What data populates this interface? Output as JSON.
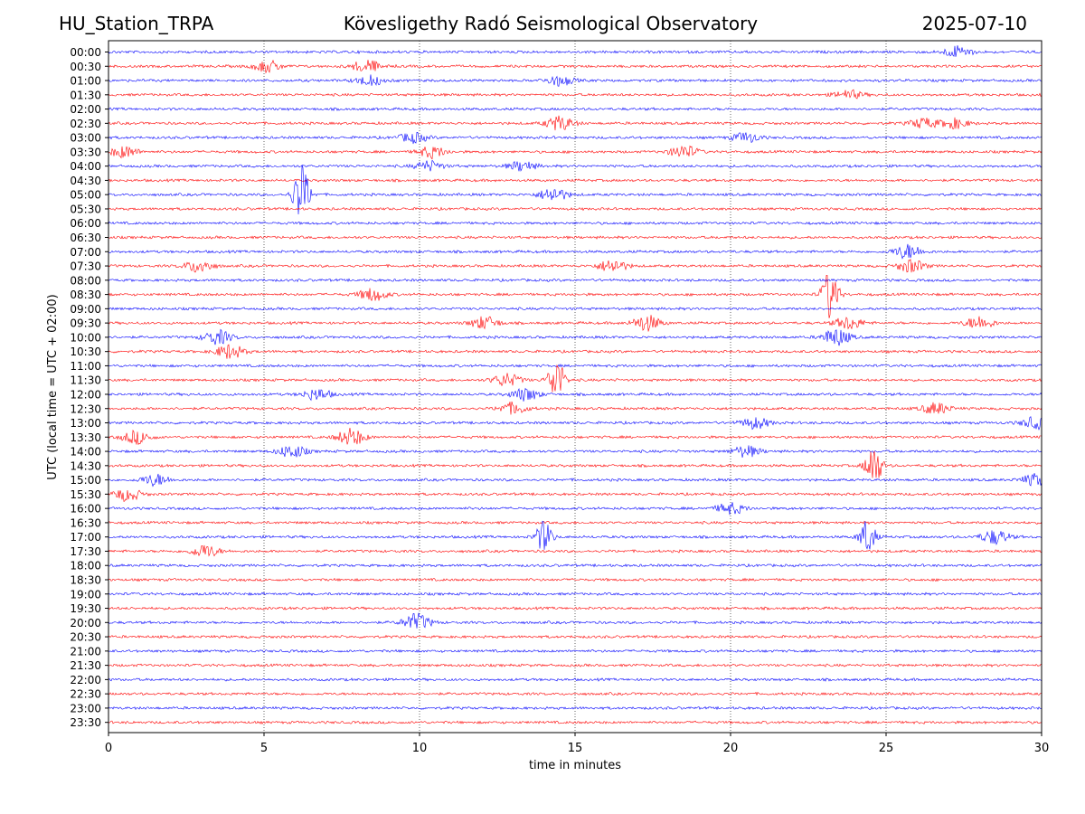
{
  "header": {
    "station": "HU_Station_TRPA",
    "observatory": "Kövesligethy Radó Seismological Observatory",
    "date": "2025-07-10"
  },
  "chart_data": {
    "type": "line",
    "title": "Kövesligethy Radó Seismological Observatory",
    "xlabel": "time in minutes",
    "ylabel": "UTC (local time = UTC + 02:00)",
    "xlim": [
      0,
      30
    ],
    "xticks": [
      0,
      5,
      10,
      15,
      20,
      25,
      30
    ],
    "grid": "vertical dotted lines at 5-minute intervals",
    "trace_colors": [
      "#0000ff",
      "#ff0000"
    ],
    "rows": [
      "00:00",
      "00:30",
      "01:00",
      "01:30",
      "02:00",
      "02:30",
      "03:00",
      "03:30",
      "04:00",
      "04:30",
      "05:00",
      "05:30",
      "06:00",
      "06:30",
      "07:00",
      "07:30",
      "08:00",
      "08:30",
      "09:00",
      "09:30",
      "10:00",
      "10:30",
      "11:00",
      "11:30",
      "12:00",
      "12:30",
      "13:00",
      "13:30",
      "14:00",
      "14:30",
      "15:00",
      "15:30",
      "16:00",
      "16:30",
      "17:00",
      "17:30",
      "18:00",
      "18:30",
      "19:00",
      "19:30",
      "20:00",
      "20:30",
      "21:00",
      "21:30",
      "22:00",
      "22:30",
      "23:00",
      "23:30"
    ],
    "events": [
      {
        "row": "00:00",
        "minute": 27.3,
        "amplitude": 0.4
      },
      {
        "row": "00:30",
        "minute": 5.1,
        "amplitude": 0.4
      },
      {
        "row": "00:30",
        "minute": 8.3,
        "amplitude": 0.45
      },
      {
        "row": "01:00",
        "minute": 8.4,
        "amplitude": 0.35
      },
      {
        "row": "01:00",
        "minute": 14.5,
        "amplitude": 0.35
      },
      {
        "row": "01:30",
        "minute": 23.8,
        "amplitude": 0.3
      },
      {
        "row": "02:30",
        "minute": 14.5,
        "amplitude": 0.5
      },
      {
        "row": "02:30",
        "minute": 26.2,
        "amplitude": 0.35
      },
      {
        "row": "02:30",
        "minute": 27.2,
        "amplitude": 0.35
      },
      {
        "row": "03:00",
        "minute": 9.8,
        "amplitude": 0.35
      },
      {
        "row": "03:00",
        "minute": 20.5,
        "amplitude": 0.35
      },
      {
        "row": "03:30",
        "minute": 0.5,
        "amplitude": 0.4
      },
      {
        "row": "03:30",
        "minute": 10.4,
        "amplitude": 0.4
      },
      {
        "row": "03:30",
        "minute": 18.5,
        "amplitude": 0.45
      },
      {
        "row": "04:00",
        "minute": 10.3,
        "amplitude": 0.35
      },
      {
        "row": "04:00",
        "minute": 13.3,
        "amplitude": 0.35
      },
      {
        "row": "05:00",
        "minute": 6.2,
        "amplitude": 2.1
      },
      {
        "row": "05:00",
        "minute": 14.3,
        "amplitude": 0.5
      },
      {
        "row": "07:00",
        "minute": 25.7,
        "amplitude": 0.5
      },
      {
        "row": "07:30",
        "minute": 2.9,
        "amplitude": 0.45
      },
      {
        "row": "07:30",
        "minute": 16.2,
        "amplitude": 0.45
      },
      {
        "row": "07:30",
        "minute": 25.8,
        "amplitude": 0.45
      },
      {
        "row": "08:30",
        "minute": 8.5,
        "amplitude": 0.45
      },
      {
        "row": "08:30",
        "minute": 23.2,
        "amplitude": 1.8
      },
      {
        "row": "09:30",
        "minute": 12.1,
        "amplitude": 0.45
      },
      {
        "row": "09:30",
        "minute": 17.3,
        "amplitude": 0.55
      },
      {
        "row": "09:30",
        "minute": 23.8,
        "amplitude": 0.45
      },
      {
        "row": "09:30",
        "minute": 28.0,
        "amplitude": 0.45
      },
      {
        "row": "10:00",
        "minute": 3.5,
        "amplitude": 0.5
      },
      {
        "row": "10:00",
        "minute": 23.4,
        "amplitude": 0.6
      },
      {
        "row": "10:30",
        "minute": 3.9,
        "amplitude": 0.5
      },
      {
        "row": "11:30",
        "minute": 12.8,
        "amplitude": 0.45
      },
      {
        "row": "11:30",
        "minute": 14.4,
        "amplitude": 1.5
      },
      {
        "row": "12:00",
        "minute": 6.7,
        "amplitude": 0.4
      },
      {
        "row": "12:00",
        "minute": 13.4,
        "amplitude": 0.45
      },
      {
        "row": "12:30",
        "minute": 13.0,
        "amplitude": 0.4
      },
      {
        "row": "12:30",
        "minute": 26.6,
        "amplitude": 0.4
      },
      {
        "row": "13:00",
        "minute": 20.8,
        "amplitude": 0.4
      },
      {
        "row": "13:00",
        "minute": 29.8,
        "amplitude": 0.4
      },
      {
        "row": "13:30",
        "minute": 0.9,
        "amplitude": 0.45
      },
      {
        "row": "13:30",
        "minute": 7.8,
        "amplitude": 0.6
      },
      {
        "row": "14:00",
        "minute": 5.9,
        "amplitude": 0.45
      },
      {
        "row": "14:00",
        "minute": 20.5,
        "amplitude": 0.4
      },
      {
        "row": "14:30",
        "minute": 24.6,
        "amplitude": 1.5
      },
      {
        "row": "15:00",
        "minute": 1.5,
        "amplitude": 0.4
      },
      {
        "row": "15:00",
        "minute": 29.8,
        "amplitude": 0.4
      },
      {
        "row": "15:30",
        "minute": 0.6,
        "amplitude": 0.45
      },
      {
        "row": "16:00",
        "minute": 20.0,
        "amplitude": 0.4
      },
      {
        "row": "17:00",
        "minute": 14.0,
        "amplitude": 1.1
      },
      {
        "row": "17:00",
        "minute": 24.4,
        "amplitude": 1.2
      },
      {
        "row": "17:00",
        "minute": 28.5,
        "amplitude": 0.5
      },
      {
        "row": "17:30",
        "minute": 3.1,
        "amplitude": 0.45
      },
      {
        "row": "20:00",
        "minute": 9.9,
        "amplitude": 0.6
      }
    ]
  }
}
